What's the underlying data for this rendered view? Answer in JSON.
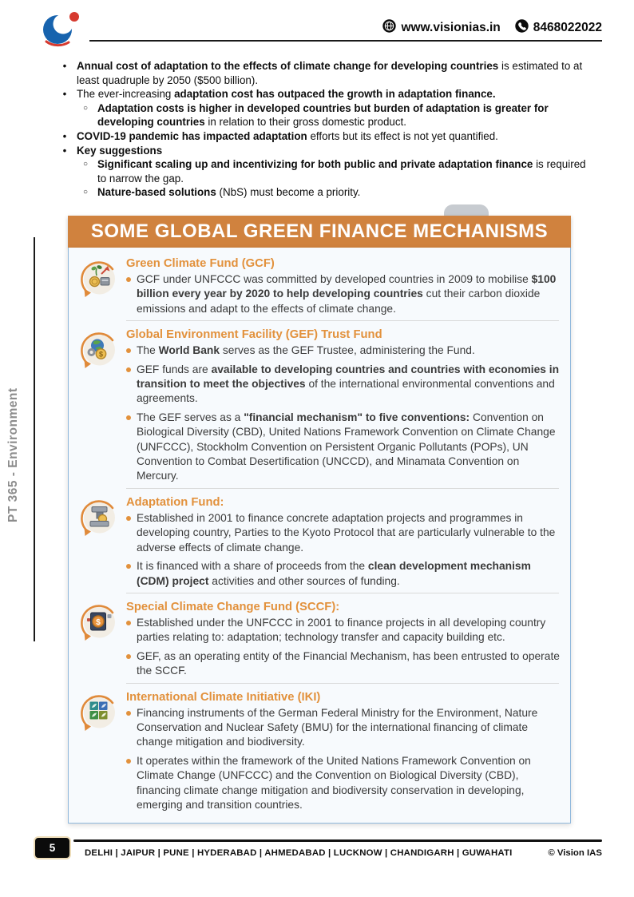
{
  "header": {
    "website": "www.visionias.in",
    "phone": "8468022022"
  },
  "sidebar": {
    "label": "PT 365 - Environment"
  },
  "intro_markers": {
    "l1": "•",
    "l2": "○"
  },
  "intro_bullets": [
    {
      "level": 1,
      "segments": [
        {
          "t": "Annual cost of adaptation to the effects of climate change for developing countries",
          "b": true
        },
        {
          "t": " is estimated to at least quadruple by 2050 ($500 billion).",
          "b": false
        }
      ]
    },
    {
      "level": 1,
      "segments": [
        {
          "t": "The ever-increasing ",
          "b": false
        },
        {
          "t": "adaptation cost has outpaced the growth in adaptation finance.",
          "b": true
        }
      ]
    },
    {
      "level": 2,
      "segments": [
        {
          "t": "Adaptation costs is higher in developed countries but burden of adaptation is greater for developing countries",
          "b": true
        },
        {
          "t": " in relation to their gross domestic product.",
          "b": false
        }
      ]
    },
    {
      "level": 1,
      "segments": [
        {
          "t": "COVID-19 pandemic has impacted adaptation",
          "b": true
        },
        {
          "t": " efforts but its effect is not yet quantified.",
          "b": false
        }
      ]
    },
    {
      "level": 1,
      "segments": [
        {
          "t": "Key suggestions",
          "b": true
        }
      ]
    },
    {
      "level": 2,
      "segments": [
        {
          "t": "Significant scaling up and incentivizing for both public and private adaptation finance",
          "b": true
        },
        {
          "t": " is required to narrow the gap.",
          "b": false
        }
      ]
    },
    {
      "level": 2,
      "segments": [
        {
          "t": "Nature-based solutions",
          "b": true
        },
        {
          "t": " (NbS) must become a priority.",
          "b": false
        }
      ]
    }
  ],
  "infobox": {
    "title": "SOME GLOBAL GREEN FINANCE MECHANISMS",
    "accent_color": "#D0823E",
    "heading_color": "#E2913C",
    "border_color": "#90B8DC",
    "sections": [
      {
        "icon": "growth-investment-icon",
        "heading": "Green Climate Fund (GCF)",
        "bullets": [
          [
            {
              "t": "GCF under UNFCCC was committed by developed countries in 2009 to mobilise ",
              "b": false
            },
            {
              "t": "$100 billion every year by 2020 to help developing countries",
              "b": true
            },
            {
              "t": " cut their carbon dioxide emissions and adapt to the effects of climate change.",
              "b": false
            }
          ]
        ]
      },
      {
        "icon": "globe-gear-finance-icon",
        "heading": "Global Environment Facility (GEF) Trust Fund",
        "bullets": [
          [
            {
              "t": "The ",
              "b": false
            },
            {
              "t": "World Bank",
              "b": true
            },
            {
              "t": " serves as the GEF Trustee, administering the Fund.",
              "b": false
            }
          ],
          [
            {
              "t": "GEF funds are ",
              "b": false
            },
            {
              "t": "available to developing countries and countries with economies in transition to meet the objectives",
              "b": true
            },
            {
              "t": " of the international environmental conventions and agreements.",
              "b": false
            }
          ],
          [
            {
              "t": "The GEF serves as a ",
              "b": false
            },
            {
              "t": "\"financial mechanism\" to five conventions:",
              "b": true
            },
            {
              "t": " Convention on Biological Diversity (CBD), United Nations Framework Convention on Climate Change (UNFCCC), Stockholm Convention on Persistent Organic Pollutants (POPs), UN Convention to Combat Desertification (UNCCD), and Minamata Convention on Mercury.",
              "b": false
            }
          ]
        ]
      },
      {
        "icon": "machine-press-icon",
        "heading": "Adaptation Fund:",
        "bullets": [
          [
            {
              "t": "Established in 2001 to finance concrete adaptation projects and programmes in developing country, Parties to the Kyoto Protocol that are particularly vulnerable to the adverse effects of climate change.",
              "b": false
            }
          ],
          [
            {
              "t": "It is financed with a share of proceeds from the ",
              "b": false
            },
            {
              "t": "clean development mechanism (CDM) project",
              "b": true
            },
            {
              "t": " activities and other sources of funding.",
              "b": false
            }
          ]
        ]
      },
      {
        "icon": "dollar-device-icon",
        "heading": "Special Climate Change Fund (SCCF):",
        "bullets": [
          [
            {
              "t": "Established under the UNFCCC in 2001 to finance projects in all developing country parties relating to: adaptation; technology transfer and capacity building etc.",
              "b": false
            }
          ],
          [
            {
              "t": "GEF, as an operating entity of the Financial Mechanism, has been entrusted to operate the SCCF.",
              "b": false
            }
          ]
        ]
      },
      {
        "icon": "nature-grid-icon",
        "heading": "International Climate Initiative (IKI)",
        "bullets": [
          [
            {
              "t": "Financing instruments of the German Federal Ministry for the Environment, Nature Conservation and Nuclear Safety (BMU) for the international financing of climate change mitigation and biodiversity.",
              "b": false
            }
          ],
          [
            {
              "t": "It operates within the framework of the United Nations Framework Convention on Climate Change (UNFCCC) and the Convention on Biological Diversity (CBD), financing climate change mitigation and biodiversity conservation in developing, emerging and transition countries.",
              "b": false
            }
          ]
        ]
      }
    ]
  },
  "footer": {
    "page_number": "5",
    "cities": "DELHI | JAIPUR | PUNE | HYDERABAD | AHMEDABAD | LUCKNOW | CHANDIGARH | GUWAHATI",
    "copyright": "© Vision IAS"
  }
}
